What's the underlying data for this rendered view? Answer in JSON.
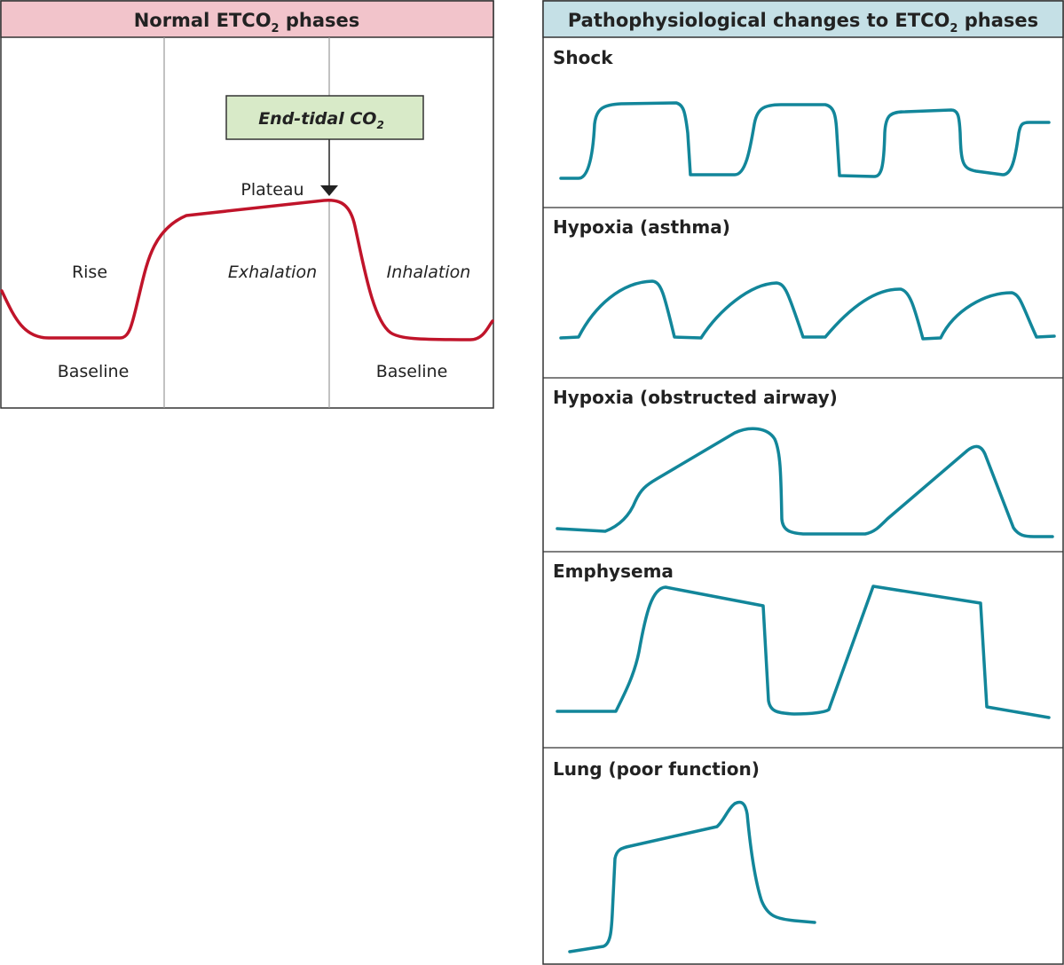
{
  "normal_panel": {
    "title": "Normal ETCO",
    "title_sub": "2",
    "title_end": " phases",
    "callout": "End-tidal CO",
    "callout_sub": "2",
    "labels": {
      "plateau": "Plateau",
      "rise": "Rise",
      "exhalation": "Exhalation",
      "inhalation": "Inhalation",
      "baseline_left": "Baseline",
      "baseline_right": "Baseline"
    },
    "colors": {
      "header": "#f2c4cb",
      "callout": "#d8eac8",
      "waveform": "#c0142a"
    }
  },
  "patho_panel": {
    "title": "Pathophysiological changes to ETCO",
    "title_sub": "2",
    "title_end": " phases",
    "sections": [
      {
        "label": "Shock"
      },
      {
        "label": "Hypoxia (asthma)"
      },
      {
        "label": "Hypoxia (obstructed airway)"
      },
      {
        "label": "Emphysema"
      },
      {
        "label": "Lung (poor function)"
      }
    ],
    "colors": {
      "header": "#c5e0e6",
      "waveform": "#12869a"
    }
  }
}
